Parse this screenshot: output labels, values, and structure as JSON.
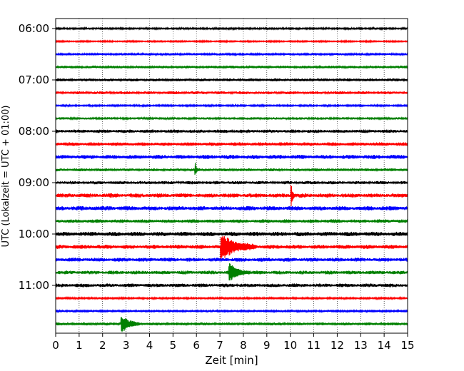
{
  "chart_data": {
    "type": "line",
    "title": "",
    "xlabel": "Zeit  [min]",
    "ylabel": "UTC (Lokalzeit = UTC + 01:00)",
    "xlim": [
      0,
      15
    ],
    "x_ticks": [
      0,
      1,
      2,
      3,
      4,
      5,
      6,
      7,
      8,
      9,
      10,
      11,
      12,
      13,
      14,
      15
    ],
    "y_tick_labels": [
      "06:00",
      "07:00",
      "08:00",
      "09:00",
      "10:00",
      "11:00"
    ],
    "grid": "vertical dotted",
    "trace_interval_min": 15,
    "color_cycle": [
      "#000000",
      "#ff0000",
      "#0000ff",
      "#008000"
    ],
    "traces": [
      {
        "start": "06:00",
        "color": "#000000",
        "noise": 0.8
      },
      {
        "start": "06:15",
        "color": "#ff0000",
        "noise": 0.6
      },
      {
        "start": "06:30",
        "color": "#0000ff",
        "noise": 0.9
      },
      {
        "start": "06:45",
        "color": "#008000",
        "noise": 1.1
      },
      {
        "start": "07:00",
        "color": "#000000",
        "noise": 1.2
      },
      {
        "start": "07:15",
        "color": "#ff0000",
        "noise": 1.2
      },
      {
        "start": "07:30",
        "color": "#0000ff",
        "noise": 0.7
      },
      {
        "start": "07:45",
        "color": "#008000",
        "noise": 1.0
      },
      {
        "start": "08:00",
        "color": "#000000",
        "noise": 1.4
      },
      {
        "start": "08:15",
        "color": "#ff0000",
        "noise": 1.5
      },
      {
        "start": "08:30",
        "color": "#0000ff",
        "noise": 1.7
      },
      {
        "start": "08:45",
        "color": "#008000",
        "noise": 1.2
      },
      {
        "start": "09:00",
        "color": "#000000",
        "noise": 1.3
      },
      {
        "start": "09:15",
        "color": "#ff0000",
        "noise": 1.7
      },
      {
        "start": "09:30",
        "color": "#0000ff",
        "noise": 1.8
      },
      {
        "start": "09:45",
        "color": "#008000",
        "noise": 1.5
      },
      {
        "start": "10:00",
        "color": "#000000",
        "noise": 1.8
      },
      {
        "start": "10:15",
        "color": "#ff0000",
        "noise": 1.7
      },
      {
        "start": "10:30",
        "color": "#0000ff",
        "noise": 1.6
      },
      {
        "start": "10:45",
        "color": "#008000",
        "noise": 1.5
      },
      {
        "start": "11:00",
        "color": "#000000",
        "noise": 1.5
      },
      {
        "start": "11:15",
        "color": "#ff0000",
        "noise": 0.8
      },
      {
        "start": "11:30",
        "color": "#0000ff",
        "noise": 0.9
      },
      {
        "start": "11:45",
        "color": "#008000",
        "noise": 1.2
      }
    ],
    "events": [
      {
        "trace": "08:45",
        "minute": 5.95,
        "amplitude": 9,
        "duration": 0.1
      },
      {
        "trace": "09:15",
        "minute": 10.05,
        "amplitude": 16,
        "duration": 0.12
      },
      {
        "trace": "10:15",
        "minute": 7.05,
        "amplitude": 20,
        "duration": 1.5
      },
      {
        "trace": "10:45",
        "minute": 7.4,
        "amplitude": 12,
        "duration": 0.9
      },
      {
        "trace": "11:45",
        "minute": 2.8,
        "amplitude": 13,
        "duration": 0.8
      }
    ]
  }
}
